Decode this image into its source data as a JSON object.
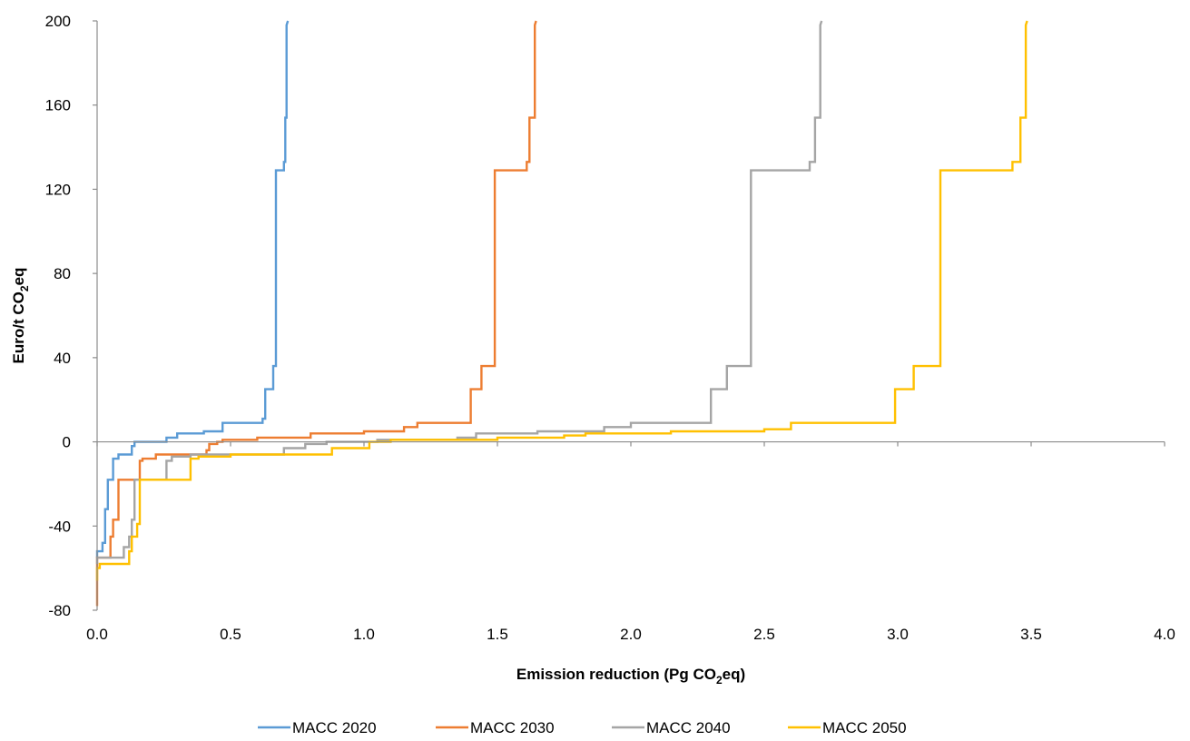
{
  "chart_data": {
    "type": "line",
    "title": "",
    "xlabel": {
      "pre": "Emission reduction (Pg CO",
      "sub": "2",
      "post": "eq)"
    },
    "ylabel": {
      "pre": "Euro/t CO",
      "sub": "2",
      "post": "eq"
    },
    "xlim": [
      0,
      4
    ],
    "ylim": [
      -80,
      200
    ],
    "x_ticks": [
      "0.0",
      "0.5",
      "1.0",
      "1.5",
      "2.0",
      "2.5",
      "3.0",
      "3.5",
      "4.0"
    ],
    "y_ticks": [
      "-80",
      "-40",
      "0",
      "40",
      "80",
      "120",
      "160",
      "200"
    ],
    "grid": false,
    "legend_position": "bottom",
    "series": [
      {
        "name": "MACC 2020",
        "color": "#5B9BD5",
        "x": [
          0.0,
          0.0,
          0.02,
          0.02,
          0.03,
          0.03,
          0.04,
          0.04,
          0.05,
          0.06,
          0.06,
          0.08,
          0.08,
          0.13,
          0.13,
          0.14,
          0.14,
          0.26,
          0.26,
          0.3,
          0.3,
          0.4,
          0.4,
          0.47,
          0.47,
          0.62,
          0.62,
          0.63,
          0.63,
          0.66,
          0.66,
          0.67,
          0.67,
          0.7,
          0.7,
          0.705,
          0.705,
          0.71,
          0.71,
          0.715
        ],
        "y": [
          -55,
          -52,
          -52,
          -48,
          -48,
          -32,
          -32,
          -18,
          -18,
          -18,
          -8,
          -8,
          -6,
          -6,
          -2,
          -2,
          0,
          0,
          2,
          2,
          4,
          4,
          5,
          5,
          9,
          9,
          11,
          11,
          25,
          25,
          36,
          36,
          129,
          129,
          133,
          133,
          154,
          154,
          198,
          200
        ]
      },
      {
        "name": "MACC 2030",
        "color": "#ED7D31",
        "x": [
          0.0,
          0.0,
          0.0,
          0.05,
          0.05,
          0.06,
          0.06,
          0.08,
          0.08,
          0.16,
          0.16,
          0.17,
          0.17,
          0.22,
          0.22,
          0.41,
          0.41,
          0.42,
          0.42,
          0.45,
          0.45,
          0.47,
          0.47,
          0.6,
          0.6,
          0.8,
          0.8,
          1.0,
          1.0,
          1.15,
          1.15,
          1.2,
          1.2,
          1.4,
          1.4,
          1.44,
          1.44,
          1.49,
          1.49,
          1.61,
          1.61,
          1.62,
          1.62,
          1.64,
          1.64,
          1.645
        ],
        "y": [
          -78,
          -65,
          -55,
          -55,
          -45,
          -45,
          -37,
          -37,
          -18,
          -18,
          -9,
          -9,
          -8,
          -8,
          -6,
          -6,
          -4,
          -4,
          -1,
          -1,
          0,
          0,
          1,
          1,
          2,
          2,
          4,
          4,
          5,
          5,
          7,
          7,
          9,
          9,
          25,
          25,
          36,
          36,
          129,
          129,
          133,
          133,
          154,
          154,
          198,
          200
        ]
      },
      {
        "name": "MACC 2040",
        "color": "#A5A5A5",
        "x": [
          0.0,
          0.0,
          0.1,
          0.1,
          0.12,
          0.12,
          0.13,
          0.13,
          0.14,
          0.14,
          0.26,
          0.26,
          0.28,
          0.28,
          0.35,
          0.35,
          0.7,
          0.7,
          0.78,
          0.78,
          0.86,
          0.86,
          1.05,
          1.05,
          1.35,
          1.35,
          1.42,
          1.42,
          1.65,
          1.65,
          1.9,
          1.9,
          2.0,
          2.0,
          2.3,
          2.3,
          2.36,
          2.36,
          2.45,
          2.45,
          2.67,
          2.67,
          2.69,
          2.69,
          2.71,
          2.71,
          2.715
        ],
        "y": [
          -58,
          -55,
          -55,
          -50,
          -50,
          -45,
          -45,
          -37,
          -37,
          -18,
          -18,
          -9,
          -9,
          -7,
          -7,
          -6,
          -6,
          -3,
          -3,
          -1,
          -1,
          0,
          0,
          1,
          1,
          2,
          2,
          4,
          4,
          5,
          5,
          7,
          7,
          9,
          9,
          25,
          25,
          36,
          36,
          129,
          129,
          133,
          133,
          154,
          154,
          198,
          200
        ]
      },
      {
        "name": "MACC 2050",
        "color": "#FFC000",
        "x": [
          0.0,
          0.0,
          0.01,
          0.01,
          0.12,
          0.12,
          0.13,
          0.13,
          0.15,
          0.15,
          0.16,
          0.16,
          0.35,
          0.35,
          0.38,
          0.38,
          0.5,
          0.5,
          0.88,
          0.88,
          1.02,
          1.02,
          1.1,
          1.1,
          1.5,
          1.5,
          1.75,
          1.75,
          1.83,
          1.83,
          2.15,
          2.15,
          2.5,
          2.5,
          2.6,
          2.6,
          2.99,
          2.99,
          3.06,
          3.06,
          3.16,
          3.16,
          3.43,
          3.43,
          3.46,
          3.46,
          3.48,
          3.48,
          3.485
        ],
        "y": [
          -66,
          -60,
          -60,
          -58,
          -58,
          -52,
          -52,
          -45,
          -45,
          -39,
          -39,
          -18,
          -18,
          -8,
          -8,
          -7,
          -7,
          -6,
          -6,
          -3,
          -3,
          0,
          0,
          1,
          1,
          2,
          2,
          3,
          3,
          4,
          4,
          5,
          5,
          6,
          6,
          9,
          9,
          25,
          25,
          36,
          36,
          129,
          129,
          133,
          133,
          154,
          154,
          198,
          200
        ]
      }
    ]
  }
}
